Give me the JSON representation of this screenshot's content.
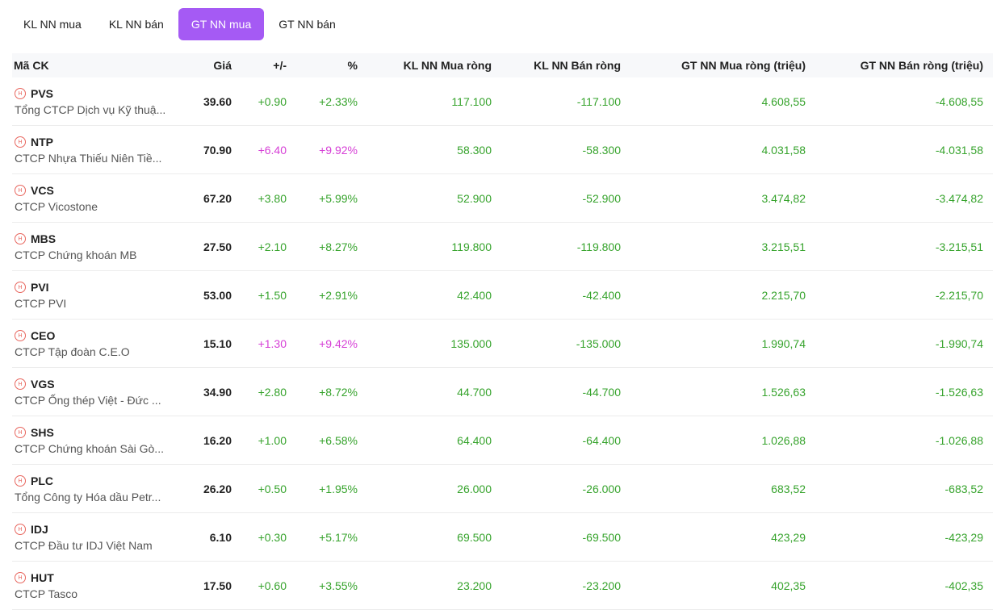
{
  "tabs": [
    {
      "label": "KL NN mua",
      "active": false
    },
    {
      "label": "KL NN bán",
      "active": false
    },
    {
      "label": "GT NN mua",
      "active": true
    },
    {
      "label": "GT NN bán",
      "active": false
    }
  ],
  "colors": {
    "accent": "#a55af4",
    "up": "#36a32c",
    "ceiling": "#d63fd6",
    "icon": "#e8665e"
  },
  "table": {
    "headers": {
      "code": "Mã CK",
      "price": "Giá",
      "change": "+/-",
      "pct": "%",
      "kl_buy": "KL NN Mua ròng",
      "kl_sell": "KL NN Bán ròng",
      "gt_buy": "GT NN Mua ròng (triệu)",
      "gt_sell": "GT NN Bán ròng (triệu)"
    },
    "rows": [
      {
        "code": "PVS",
        "name": "Tổng CTCP Dịch vụ Kỹ thuậ...",
        "price": "39.60",
        "change": "+0.90",
        "pct": "+2.33%",
        "kl_buy": "117.100",
        "kl_sell": "-117.100",
        "gt_buy": "4.608,55",
        "gt_sell": "-4.608,55",
        "status": "up"
      },
      {
        "code": "NTP",
        "name": "CTCP Nhựa Thiếu Niên Tiề...",
        "price": "70.90",
        "change": "+6.40",
        "pct": "+9.92%",
        "kl_buy": "58.300",
        "kl_sell": "-58.300",
        "gt_buy": "4.031,58",
        "gt_sell": "-4.031,58",
        "status": "ceil"
      },
      {
        "code": "VCS",
        "name": "CTCP Vicostone",
        "price": "67.20",
        "change": "+3.80",
        "pct": "+5.99%",
        "kl_buy": "52.900",
        "kl_sell": "-52.900",
        "gt_buy": "3.474,82",
        "gt_sell": "-3.474,82",
        "status": "up"
      },
      {
        "code": "MBS",
        "name": "CTCP Chứng khoán MB",
        "price": "27.50",
        "change": "+2.10",
        "pct": "+8.27%",
        "kl_buy": "119.800",
        "kl_sell": "-119.800",
        "gt_buy": "3.215,51",
        "gt_sell": "-3.215,51",
        "status": "up"
      },
      {
        "code": "PVI",
        "name": "CTCP PVI",
        "price": "53.00",
        "change": "+1.50",
        "pct": "+2.91%",
        "kl_buy": "42.400",
        "kl_sell": "-42.400",
        "gt_buy": "2.215,70",
        "gt_sell": "-2.215,70",
        "status": "up"
      },
      {
        "code": "CEO",
        "name": "CTCP Tập đoàn C.E.O",
        "price": "15.10",
        "change": "+1.30",
        "pct": "+9.42%",
        "kl_buy": "135.000",
        "kl_sell": "-135.000",
        "gt_buy": "1.990,74",
        "gt_sell": "-1.990,74",
        "status": "ceil"
      },
      {
        "code": "VGS",
        "name": "CTCP Ống thép Việt - Đức ...",
        "price": "34.90",
        "change": "+2.80",
        "pct": "+8.72%",
        "kl_buy": "44.700",
        "kl_sell": "-44.700",
        "gt_buy": "1.526,63",
        "gt_sell": "-1.526,63",
        "status": "up"
      },
      {
        "code": "SHS",
        "name": "CTCP Chứng khoán Sài Gò...",
        "price": "16.20",
        "change": "+1.00",
        "pct": "+6.58%",
        "kl_buy": "64.400",
        "kl_sell": "-64.400",
        "gt_buy": "1.026,88",
        "gt_sell": "-1.026,88",
        "status": "up"
      },
      {
        "code": "PLC",
        "name": "Tổng Công ty Hóa dầu Petr...",
        "price": "26.20",
        "change": "+0.50",
        "pct": "+1.95%",
        "kl_buy": "26.000",
        "kl_sell": "-26.000",
        "gt_buy": "683,52",
        "gt_sell": "-683,52",
        "status": "up"
      },
      {
        "code": "IDJ",
        "name": "CTCP Đầu tư IDJ Việt Nam",
        "price": "6.10",
        "change": "+0.30",
        "pct": "+5.17%",
        "kl_buy": "69.500",
        "kl_sell": "-69.500",
        "gt_buy": "423,29",
        "gt_sell": "-423,29",
        "status": "up"
      },
      {
        "code": "HUT",
        "name": "CTCP Tasco",
        "price": "17.50",
        "change": "+0.60",
        "pct": "+3.55%",
        "kl_buy": "23.200",
        "kl_sell": "-23.200",
        "gt_buy": "402,35",
        "gt_sell": "-402,35",
        "status": "up"
      }
    ]
  }
}
